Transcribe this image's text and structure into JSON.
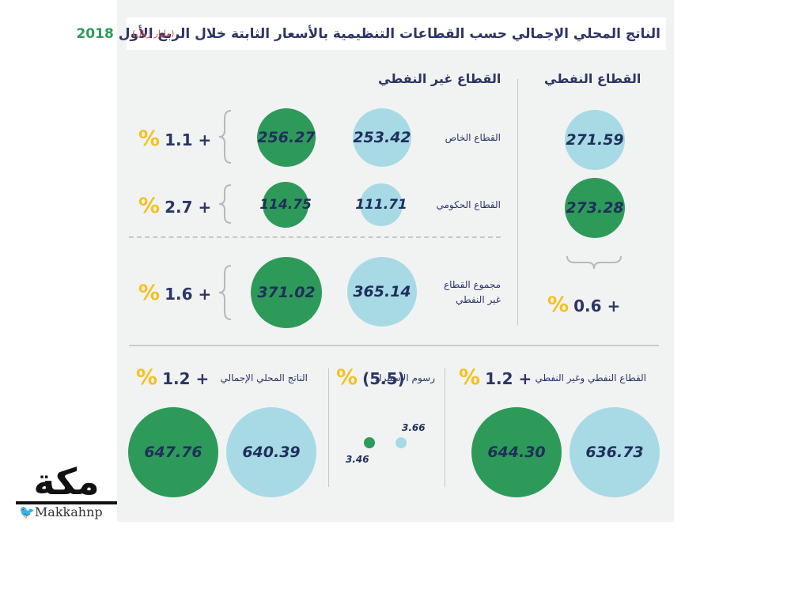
{
  "title": {
    "text": "الناتج المحلي الإجمالي حسب القطاعات التنظيمية بالأسعار الثابتة خلال الربع الأول",
    "year": "2018",
    "unit": "(مليار ريال)"
  },
  "colors": {
    "green": "#2e9a5a",
    "blue": "#a8dae6",
    "navy": "#2c3565",
    "yellow": "#f4c21f"
  },
  "headers": {
    "non_oil": "القطاع غير النفطي",
    "oil": "القطاع النفطي"
  },
  "chart_data": [
    {
      "type": "bubble",
      "title": "القطاع غير النفطي",
      "unit": "مليار ريال",
      "categories": [
        "القطاع الخاص",
        "القطاع الحكومي",
        "مجموع القطاع غير النفطي"
      ],
      "series": [
        {
          "name": "blue",
          "values": [
            253.42,
            111.71,
            365.14
          ]
        },
        {
          "name": "green",
          "values": [
            256.27,
            114.75,
            371.02
          ]
        }
      ],
      "changes": [
        "1.1 +",
        "2.7 +",
        "1.6 +"
      ]
    },
    {
      "type": "bubble",
      "title": "القطاع النفطي",
      "series": [
        {
          "name": "blue",
          "values": [
            271.59
          ]
        },
        {
          "name": "green",
          "values": [
            273.28
          ]
        }
      ],
      "change": "0.6 +"
    },
    {
      "type": "bubble",
      "title": "القطاع النفطي وغير النفطي",
      "series": [
        {
          "name": "blue",
          "values": [
            636.73
          ]
        },
        {
          "name": "green",
          "values": [
            644.3
          ]
        }
      ],
      "change": "1.2 +"
    },
    {
      "type": "bubble",
      "title": "رسوم الاستيراد",
      "series": [
        {
          "name": "blue",
          "values": [
            3.66
          ]
        },
        {
          "name": "green",
          "values": [
            3.46
          ]
        }
      ],
      "change": "(5.5)"
    },
    {
      "type": "bubble",
      "title": "الناتج المحلي الإجمالي",
      "series": [
        {
          "name": "blue",
          "values": [
            640.39
          ]
        },
        {
          "name": "green",
          "values": [
            647.76
          ]
        }
      ],
      "change": "1.2 +"
    }
  ],
  "display": {
    "private": {
      "label": "القطاع الخاص",
      "blue": "253.42",
      "green": "256.27",
      "change": "1.1 +"
    },
    "gov": {
      "label": "القطاع الحكومي",
      "blue": "111.71",
      "green": "114.75",
      "change": "2.7 +"
    },
    "total_non_oil": {
      "label_line1": "مجموع القطاع",
      "label_line2": "غير النفطي",
      "blue": "365.14",
      "green": "371.02",
      "change": "1.6 +"
    },
    "oil": {
      "blue": "271.59",
      "green": "273.28",
      "change": "0.6 +"
    },
    "oil_nonoil": {
      "label": "القطاع النفطي وغير النفطي",
      "blue": "636.73",
      "green": "644.30",
      "change": "1.2 +"
    },
    "import": {
      "label": "رسوم الاستيراد",
      "blue": "3.66",
      "green": "3.46",
      "change": "(5.5)"
    },
    "gdp": {
      "label": "الناتج المحلي الإجمالي",
      "blue": "640.39",
      "green": "647.76",
      "change": "1.2 +"
    },
    "percent_sign": "%"
  },
  "logo": {
    "text": "مكة",
    "handle": "Makkahnp",
    "icon": "twitter-bird-icon"
  }
}
